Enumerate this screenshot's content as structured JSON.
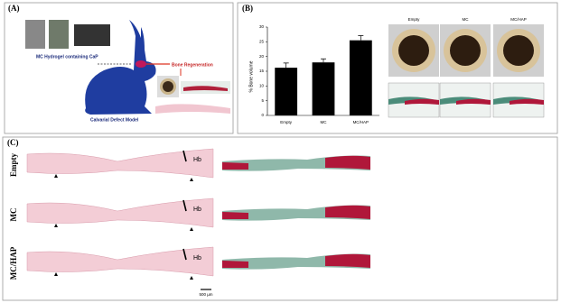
{
  "panels": {
    "a": {
      "label": "(A)",
      "hydrogel": "MC Hydrogel containing CaP",
      "regeneration": "Bone Regeneration",
      "model": "Calvarial Defect Model"
    },
    "b": {
      "label": "(B)",
      "columns": [
        "Empty",
        "MC",
        "MC/HAP"
      ]
    },
    "c": {
      "label": "(C)",
      "rows": [
        "Empty",
        "MC",
        "MC/HAP"
      ],
      "host_bone": "Hb",
      "scale": "500 µm"
    }
  },
  "chart_data": {
    "type": "bar",
    "y_label": "% Bone volume",
    "categories": [
      "Empty",
      "MC",
      "MC/HAP"
    ],
    "values": [
      16.2,
      18,
      25.5
    ],
    "errors": [
      1.6,
      1.2,
      1.6
    ],
    "color": "#000000",
    "ylim": [
      0,
      30
    ],
    "yticks": [
      0,
      5,
      10,
      15,
      20,
      25,
      30
    ]
  }
}
